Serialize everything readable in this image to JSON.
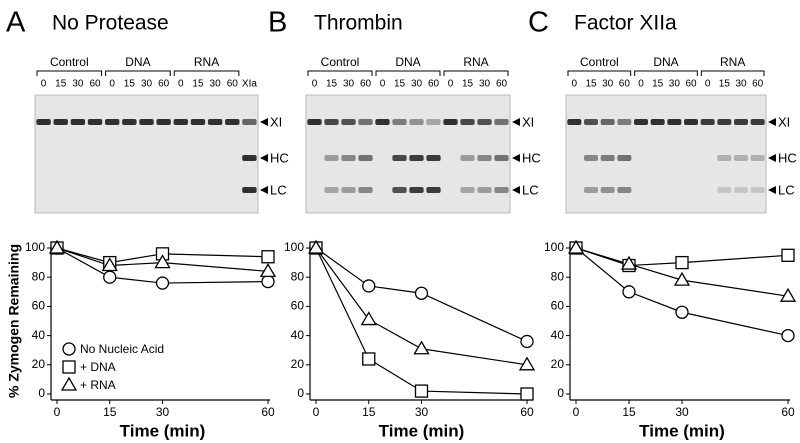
{
  "panels": [
    {
      "letter": "A",
      "title": "No Protease",
      "groups": [
        "Control",
        "DNA",
        "RNA"
      ],
      "lanes": [
        "0",
        "15",
        "30",
        "60",
        "0",
        "15",
        "30",
        "60",
        "0",
        "15",
        "30",
        "60"
      ],
      "extra_lane": "XIa",
      "bands": [
        "XI",
        "HC",
        "LC"
      ]
    },
    {
      "letter": "B",
      "title": "Thrombin",
      "groups": [
        "Control",
        "DNA",
        "RNA"
      ],
      "lanes": [
        "0",
        "15",
        "30",
        "60",
        "0",
        "15",
        "30",
        "60",
        "0",
        "15",
        "30",
        "60"
      ],
      "bands": [
        "XI",
        "HC",
        "LC"
      ]
    },
    {
      "letter": "C",
      "title": "Factor XIIa",
      "groups": [
        "Control",
        "DNA",
        "RNA"
      ],
      "lanes": [
        "0",
        "15",
        "30",
        "60",
        "0",
        "15",
        "30",
        "60",
        "0",
        "15",
        "30",
        "60"
      ],
      "bands": [
        "XI",
        "HC",
        "LC"
      ]
    }
  ],
  "chart_data": [
    {
      "type": "line",
      "ylabel": "% Zymogen Remaining",
      "xlabel": "Time (min)",
      "x": [
        0,
        15,
        30,
        60
      ],
      "xlim": [
        0,
        60
      ],
      "xticks": [
        0,
        15,
        30,
        60
      ],
      "ylim": [
        0,
        100
      ],
      "yticks": [
        0,
        20,
        40,
        60,
        80,
        100
      ],
      "legend": "lower left",
      "series": [
        {
          "name": "No Nucleic Acid",
          "marker": "circle",
          "color": "#000000",
          "values": [
            100,
            80,
            76,
            77
          ]
        },
        {
          "name": "+ DNA",
          "marker": "square",
          "color": "#000000",
          "values": [
            100,
            90,
            96,
            94
          ]
        },
        {
          "name": "+ RNA",
          "marker": "triangle",
          "color": "#000000",
          "values": [
            100,
            88,
            90,
            84
          ]
        }
      ]
    },
    {
      "type": "line",
      "xlabel": "Time (min)",
      "x": [
        0,
        15,
        30,
        60
      ],
      "xlim": [
        0,
        60
      ],
      "xticks": [
        0,
        15,
        30,
        60
      ],
      "ylim": [
        0,
        100
      ],
      "yticks": [
        0,
        20,
        40,
        60,
        80,
        100
      ],
      "series": [
        {
          "marker": "circle",
          "color": "#000000",
          "values": [
            100,
            74,
            69,
            36
          ]
        },
        {
          "marker": "square",
          "color": "#000000",
          "values": [
            100,
            24,
            2,
            0
          ]
        },
        {
          "marker": "triangle",
          "color": "#000000",
          "values": [
            100,
            51,
            31,
            20
          ]
        }
      ]
    },
    {
      "type": "line",
      "xlabel": "Time (min)",
      "x": [
        0,
        15,
        30,
        60
      ],
      "xlim": [
        0,
        60
      ],
      "xticks": [
        0,
        15,
        30,
        60
      ],
      "ylim": [
        0,
        100
      ],
      "yticks": [
        0,
        20,
        40,
        60,
        80,
        100
      ],
      "series": [
        {
          "marker": "circle",
          "color": "#000000",
          "values": [
            100,
            70,
            56,
            40
          ]
        },
        {
          "marker": "square",
          "color": "#000000",
          "values": [
            100,
            88,
            90,
            95
          ]
        },
        {
          "marker": "triangle",
          "color": "#000000",
          "values": [
            100,
            89,
            78,
            67
          ]
        }
      ]
    }
  ]
}
